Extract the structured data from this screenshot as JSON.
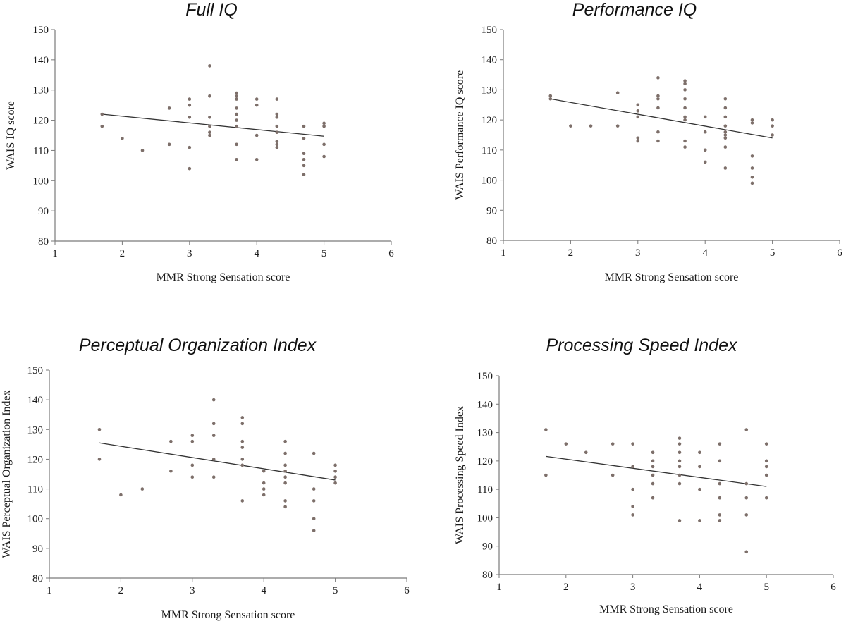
{
  "chart_data": [
    {
      "type": "scatter",
      "title": "Full IQ",
      "xlabel": "MMR Strong Sensation score",
      "ylabel": "WAIS IQ score",
      "xlim": [
        1,
        6
      ],
      "ylim": [
        80,
        150
      ],
      "xticks": [
        "1",
        "2",
        "3",
        "4",
        "5",
        "6"
      ],
      "yticks": [
        "80",
        "90",
        "100",
        "110",
        "120",
        "130",
        "140",
        "150"
      ],
      "grid": false,
      "trendline": {
        "x": [
          1.7,
          5.0
        ],
        "y": [
          122,
          114.7
        ]
      },
      "points": [
        [
          1.7,
          122
        ],
        [
          1.7,
          118
        ],
        [
          2.0,
          114
        ],
        [
          2.3,
          110
        ],
        [
          2.7,
          124
        ],
        [
          2.7,
          112
        ],
        [
          3.0,
          127
        ],
        [
          3.0,
          125
        ],
        [
          3.0,
          121
        ],
        [
          3.0,
          111
        ],
        [
          3.0,
          104
        ],
        [
          3.3,
          138
        ],
        [
          3.3,
          128
        ],
        [
          3.3,
          121
        ],
        [
          3.3,
          118
        ],
        [
          3.3,
          116
        ],
        [
          3.3,
          115
        ],
        [
          3.7,
          129
        ],
        [
          3.7,
          128
        ],
        [
          3.7,
          127
        ],
        [
          3.7,
          124
        ],
        [
          3.7,
          122
        ],
        [
          3.7,
          120
        ],
        [
          3.7,
          118
        ],
        [
          3.7,
          112
        ],
        [
          3.7,
          107
        ],
        [
          4.0,
          127
        ],
        [
          4.0,
          125
        ],
        [
          4.0,
          115
        ],
        [
          4.0,
          107
        ],
        [
          4.3,
          127
        ],
        [
          4.3,
          122
        ],
        [
          4.3,
          121
        ],
        [
          4.3,
          118
        ],
        [
          4.3,
          116
        ],
        [
          4.3,
          113
        ],
        [
          4.3,
          112
        ],
        [
          4.3,
          111
        ],
        [
          4.7,
          118
        ],
        [
          4.7,
          114
        ],
        [
          4.7,
          109
        ],
        [
          4.7,
          107
        ],
        [
          4.7,
          105
        ],
        [
          4.7,
          102
        ],
        [
          5.0,
          119
        ],
        [
          5.0,
          118
        ],
        [
          5.0,
          112
        ],
        [
          5.0,
          108
        ]
      ]
    },
    {
      "type": "scatter",
      "title": "Performance IQ",
      "xlabel": "MMR Strong Sensation score",
      "ylabel": "WAIS Performance IQ score",
      "xlim": [
        1,
        6
      ],
      "ylim": [
        80,
        150
      ],
      "xticks": [
        "1",
        "2",
        "3",
        "4",
        "5",
        "6"
      ],
      "yticks": [
        "80",
        "90",
        "100",
        "110",
        "120",
        "130",
        "140",
        "150"
      ],
      "grid": false,
      "trendline": {
        "x": [
          1.7,
          5.0
        ],
        "y": [
          127,
          114
        ]
      },
      "points": [
        [
          1.7,
          128
        ],
        [
          1.7,
          127
        ],
        [
          2.0,
          118
        ],
        [
          2.3,
          118
        ],
        [
          2.7,
          129
        ],
        [
          2.7,
          118
        ],
        [
          3.0,
          125
        ],
        [
          3.0,
          123
        ],
        [
          3.0,
          121
        ],
        [
          3.0,
          114
        ],
        [
          3.0,
          113
        ],
        [
          3.3,
          134
        ],
        [
          3.3,
          128
        ],
        [
          3.3,
          127
        ],
        [
          3.3,
          124
        ],
        [
          3.3,
          116
        ],
        [
          3.3,
          113
        ],
        [
          3.7,
          133
        ],
        [
          3.7,
          132
        ],
        [
          3.7,
          130
        ],
        [
          3.7,
          127
        ],
        [
          3.7,
          124
        ],
        [
          3.7,
          121
        ],
        [
          3.7,
          120
        ],
        [
          3.7,
          113
        ],
        [
          3.7,
          111
        ],
        [
          4.0,
          121
        ],
        [
          4.0,
          116
        ],
        [
          4.0,
          110
        ],
        [
          4.0,
          106
        ],
        [
          4.3,
          127
        ],
        [
          4.3,
          124
        ],
        [
          4.3,
          121
        ],
        [
          4.3,
          118
        ],
        [
          4.3,
          116
        ],
        [
          4.3,
          115
        ],
        [
          4.3,
          114
        ],
        [
          4.3,
          111
        ],
        [
          4.3,
          104
        ],
        [
          4.7,
          120
        ],
        [
          4.7,
          119
        ],
        [
          4.7,
          108
        ],
        [
          4.7,
          104
        ],
        [
          4.7,
          101
        ],
        [
          4.7,
          99
        ],
        [
          5.0,
          120
        ],
        [
          5.0,
          118
        ],
        [
          5.0,
          115
        ]
      ]
    },
    {
      "type": "scatter",
      "title": "Perceptual Organization Index",
      "xlabel": "MMR Strong Sensation score",
      "ylabel": "WAIS Perceptual Organization Index",
      "xlim": [
        1,
        6
      ],
      "ylim": [
        80,
        150
      ],
      "xticks": [
        "1",
        "2",
        "3",
        "4",
        "5",
        "6"
      ],
      "yticks": [
        "80",
        "90",
        "100",
        "110",
        "120",
        "130",
        "140",
        "150"
      ],
      "grid": false,
      "trendline": {
        "x": [
          1.7,
          5.0
        ],
        "y": [
          125.5,
          113
        ]
      },
      "points": [
        [
          1.7,
          130
        ],
        [
          1.7,
          120
        ],
        [
          2.0,
          108
        ],
        [
          2.3,
          110
        ],
        [
          2.7,
          126
        ],
        [
          2.7,
          116
        ],
        [
          3.0,
          128
        ],
        [
          3.0,
          126
        ],
        [
          3.0,
          118
        ],
        [
          3.0,
          114
        ],
        [
          3.3,
          140
        ],
        [
          3.3,
          132
        ],
        [
          3.3,
          128
        ],
        [
          3.3,
          120
        ],
        [
          3.3,
          114
        ],
        [
          3.7,
          134
        ],
        [
          3.7,
          132
        ],
        [
          3.7,
          126
        ],
        [
          3.7,
          124
        ],
        [
          3.7,
          120
        ],
        [
          3.7,
          118
        ],
        [
          3.7,
          106
        ],
        [
          4.0,
          116
        ],
        [
          4.0,
          112
        ],
        [
          4.0,
          110
        ],
        [
          4.0,
          108
        ],
        [
          4.3,
          126
        ],
        [
          4.3,
          122
        ],
        [
          4.3,
          118
        ],
        [
          4.3,
          116
        ],
        [
          4.3,
          114
        ],
        [
          4.3,
          112
        ],
        [
          4.3,
          106
        ],
        [
          4.3,
          104
        ],
        [
          4.7,
          122
        ],
        [
          4.7,
          110
        ],
        [
          4.7,
          106
        ],
        [
          4.7,
          100
        ],
        [
          4.7,
          96
        ],
        [
          5.0,
          118
        ],
        [
          5.0,
          116
        ],
        [
          5.0,
          114
        ],
        [
          5.0,
          112
        ]
      ]
    },
    {
      "type": "scatter",
      "title": "Processing Speed Index",
      "xlabel": "MMR Strong Sensation score",
      "ylabel": "WAIS Processing Speed Index",
      "xlim": [
        1,
        6
      ],
      "ylim": [
        80,
        150
      ],
      "xticks": [
        "1",
        "2",
        "3",
        "4",
        "5",
        "6"
      ],
      "yticks": [
        "80",
        "90",
        "100",
        "110",
        "120",
        "130",
        "140",
        "150"
      ],
      "grid": false,
      "trendline": {
        "x": [
          1.7,
          5.0
        ],
        "y": [
          121.6,
          111
        ]
      },
      "points": [
        [
          1.7,
          131
        ],
        [
          1.7,
          115
        ],
        [
          2.0,
          126
        ],
        [
          2.3,
          123
        ],
        [
          2.7,
          126
        ],
        [
          2.7,
          115
        ],
        [
          3.0,
          126
        ],
        [
          3.0,
          118
        ],
        [
          3.0,
          110
        ],
        [
          3.0,
          104
        ],
        [
          3.0,
          101
        ],
        [
          3.3,
          123
        ],
        [
          3.3,
          120
        ],
        [
          3.3,
          118
        ],
        [
          3.3,
          115
        ],
        [
          3.3,
          112
        ],
        [
          3.3,
          107
        ],
        [
          3.7,
          128
        ],
        [
          3.7,
          126
        ],
        [
          3.7,
          123
        ],
        [
          3.7,
          120
        ],
        [
          3.7,
          118
        ],
        [
          3.7,
          115
        ],
        [
          3.7,
          112
        ],
        [
          3.7,
          99
        ],
        [
          4.0,
          123
        ],
        [
          4.0,
          118
        ],
        [
          4.0,
          110
        ],
        [
          4.0,
          99
        ],
        [
          4.3,
          126
        ],
        [
          4.3,
          120
        ],
        [
          4.3,
          112
        ],
        [
          4.3,
          107
        ],
        [
          4.3,
          101
        ],
        [
          4.3,
          99
        ],
        [
          4.7,
          131
        ],
        [
          4.7,
          112
        ],
        [
          4.7,
          107
        ],
        [
          4.7,
          101
        ],
        [
          4.7,
          88
        ],
        [
          5.0,
          126
        ],
        [
          5.0,
          120
        ],
        [
          5.0,
          118
        ],
        [
          5.0,
          115
        ],
        [
          5.0,
          107
        ]
      ]
    }
  ]
}
